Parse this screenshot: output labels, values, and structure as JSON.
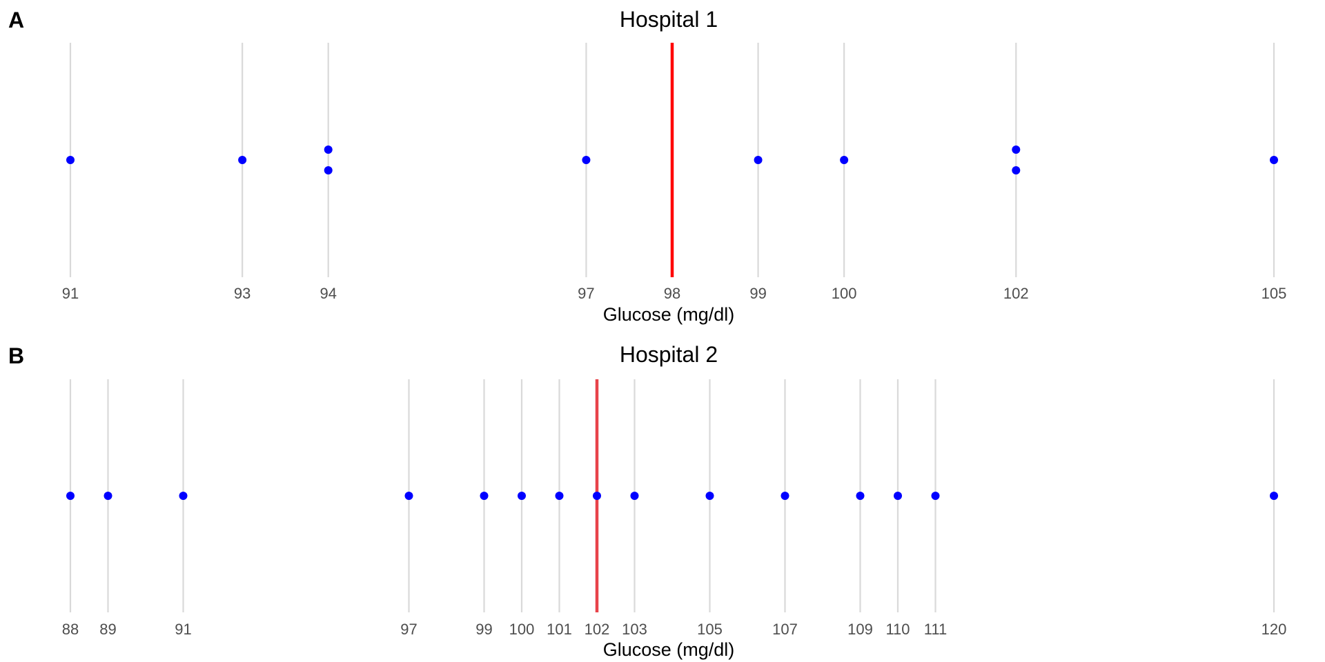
{
  "chart_data": [
    {
      "type": "scatter",
      "panel_label": "A",
      "title": "Hospital 1",
      "xlabel": "Glucose (mg/dl)",
      "ylabel": "",
      "xlim": [
        91,
        105
      ],
      "tick_labels": [
        "91",
        "93",
        "94",
        "97",
        "98",
        "99",
        "100",
        "102",
        "105"
      ],
      "ticks": [
        91,
        93,
        94,
        97,
        98,
        99,
        100,
        102,
        105
      ],
      "points": [
        91,
        93,
        94,
        94,
        97,
        99,
        100,
        102,
        102,
        105
      ],
      "reference_line": 98,
      "grid": true,
      "colors": {
        "points": "#0000ff",
        "reference_line": "#ff0000",
        "grid": "#d9d9d9"
      }
    },
    {
      "type": "scatter",
      "panel_label": "B",
      "title": "Hospital 2",
      "xlabel": "Glucose (mg/dl)",
      "ylabel": "",
      "xlim": [
        88,
        120
      ],
      "tick_labels": [
        "88",
        "89",
        "91",
        "97",
        "99",
        "100",
        "101",
        "102",
        "103",
        "105",
        "107",
        "109",
        "110",
        "111",
        "120"
      ],
      "ticks": [
        88,
        89,
        91,
        97,
        99,
        100,
        101,
        102,
        103,
        105,
        107,
        109,
        110,
        111,
        120
      ],
      "points": [
        88,
        89,
        91,
        97,
        99,
        100,
        101,
        102,
        103,
        105,
        107,
        109,
        110,
        111,
        120
      ],
      "reference_line": 102,
      "grid": true,
      "colors": {
        "points": "#0000ff",
        "reference_line": "#e8434a",
        "grid": "#d9d9d9"
      }
    }
  ]
}
